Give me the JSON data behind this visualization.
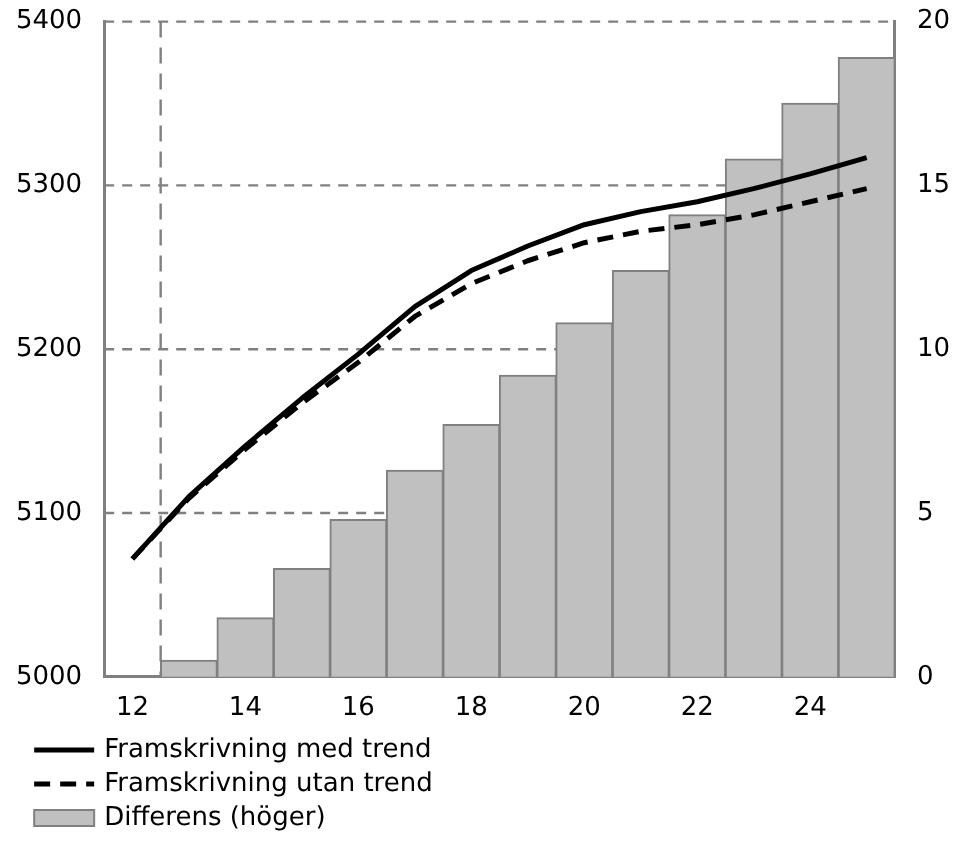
{
  "chart_data": {
    "type": "line",
    "x": [
      12,
      13,
      14,
      15,
      16,
      17,
      18,
      19,
      20,
      21,
      22,
      23,
      24,
      25
    ],
    "xlim": [
      11.5,
      25.5
    ],
    "xticks": [
      12,
      14,
      16,
      18,
      20,
      22,
      24
    ],
    "ylim": [
      5000,
      5400
    ],
    "yticks": [
      5000,
      5100,
      5200,
      5300,
      5400
    ],
    "y2lim": [
      0,
      20
    ],
    "y2ticks": [
      0,
      5,
      10,
      15,
      20
    ],
    "grid": "y",
    "legend": "bottom",
    "marker": "none",
    "ref_lines": [
      {
        "axis": "x",
        "value": 12.5,
        "color": "#808080",
        "line_style": "dashed"
      }
    ],
    "series": [
      {
        "name": "Framskrivning med trend",
        "color": "#000000",
        "line_style": "solid",
        "values": [
          5072,
          5110,
          5141,
          5170,
          5197,
          5226,
          5248,
          5263,
          5276,
          5284,
          5290,
          5298,
          5307,
          5317
        ]
      },
      {
        "name": "Framskrivning utan trend",
        "color": "#000000",
        "line_style": "dashed",
        "values": [
          5072,
          5109,
          5139,
          5167,
          5192,
          5220,
          5240,
          5254,
          5265,
          5272,
          5276,
          5282,
          5290,
          5298
        ]
      },
      {
        "name": "Differens (höger)",
        "type": "bar",
        "axis": "y2",
        "color": "#c0c0c0",
        "values": [
          0,
          0.5,
          1.8,
          3.3,
          4.8,
          6.3,
          7.7,
          9.2,
          10.8,
          12.4,
          14.1,
          15.8,
          17.5,
          18.9
        ]
      }
    ]
  }
}
